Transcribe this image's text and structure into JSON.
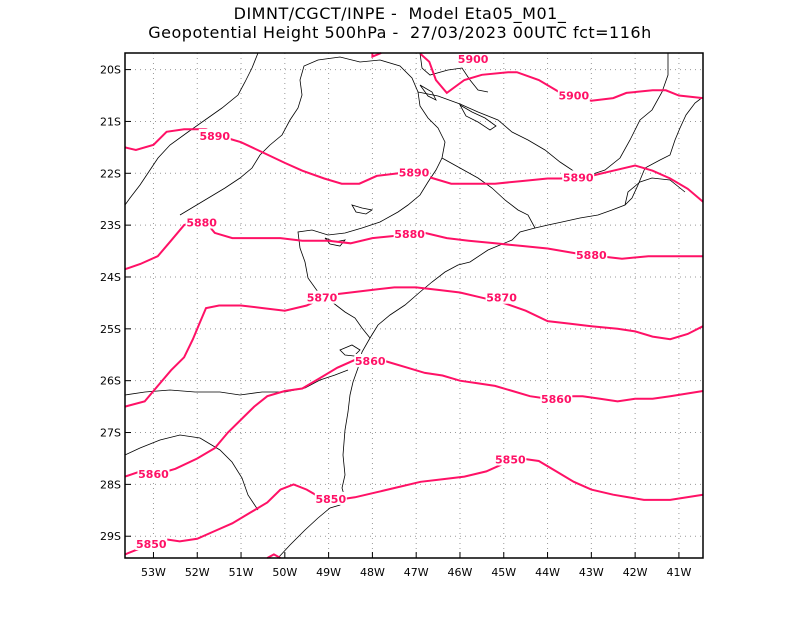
{
  "header": {
    "title_line1": "DIMNT/CGCT/INPE -  Model Eta05_M01_",
    "title_line2": "Geopotential Height 500hPa -  27/03/2023 00UTC fct=116h"
  },
  "map": {
    "lon_range": [
      -53.65,
      -40.45
    ],
    "lat_range": [
      -29.42,
      -19.68
    ],
    "lon_ticks": [
      {
        "value": -53,
        "label": "53W"
      },
      {
        "value": -52,
        "label": "52W"
      },
      {
        "value": -51,
        "label": "51W"
      },
      {
        "value": -50,
        "label": "50W"
      },
      {
        "value": -49,
        "label": "49W"
      },
      {
        "value": -48,
        "label": "48W"
      },
      {
        "value": -47,
        "label": "47W"
      },
      {
        "value": -46,
        "label": "46W"
      },
      {
        "value": -45,
        "label": "45W"
      },
      {
        "value": -44,
        "label": "44W"
      },
      {
        "value": -43,
        "label": "43W"
      },
      {
        "value": -42,
        "label": "42W"
      },
      {
        "value": -41,
        "label": "41W"
      }
    ],
    "lat_ticks": [
      {
        "value": -20,
        "label": "20S"
      },
      {
        "value": -21,
        "label": "21S"
      },
      {
        "value": -22,
        "label": "22S"
      },
      {
        "value": -23,
        "label": "23S"
      },
      {
        "value": -24,
        "label": "24S"
      },
      {
        "value": -25,
        "label": "25S"
      },
      {
        "value": -26,
        "label": "26S"
      },
      {
        "value": -27,
        "label": "27S"
      },
      {
        "value": -28,
        "label": "28S"
      },
      {
        "value": -29,
        "label": "29S"
      }
    ],
    "grid": "dotted",
    "contour_color": "#ff1166",
    "contours": [
      {
        "level": "5900",
        "points": [
          [
            -46.9,
            -19.7
          ],
          [
            -46.7,
            -19.85
          ],
          [
            -46.55,
            -20.2
          ],
          [
            -46.3,
            -20.45
          ],
          [
            -45.9,
            -20.2
          ],
          [
            -45.5,
            -20.1
          ],
          [
            -44.9,
            -20.05
          ],
          [
            -44.7,
            -20.05
          ],
          [
            -44.2,
            -20.2
          ],
          [
            -43.6,
            -20.5
          ],
          [
            -43.0,
            -20.6
          ],
          [
            -42.5,
            -20.55
          ],
          [
            -42.2,
            -20.45
          ],
          [
            -41.6,
            -20.4
          ],
          [
            -41.3,
            -20.4
          ],
          [
            -41.0,
            -20.5
          ],
          [
            -40.45,
            -20.55
          ]
        ],
        "labels": [
          {
            "text": "5900",
            "lon": -45.7,
            "lat": -19.8
          },
          {
            "text": "5900",
            "lon": -43.4,
            "lat": -20.5
          }
        ]
      },
      {
        "level": "5900",
        "points": [
          [
            -48.0,
            -19.68
          ],
          [
            -48.0,
            -19.75
          ],
          [
            -47.8,
            -19.68
          ]
        ],
        "labels": []
      },
      {
        "level": "5890",
        "points": [
          [
            -53.65,
            -21.5
          ],
          [
            -53.4,
            -21.55
          ],
          [
            -53.0,
            -21.45
          ],
          [
            -52.7,
            -21.2
          ],
          [
            -52.3,
            -21.15
          ],
          [
            -51.8,
            -21.15
          ],
          [
            -51.4,
            -21.3
          ],
          [
            -51.0,
            -21.4
          ],
          [
            -50.5,
            -21.6
          ],
          [
            -50.0,
            -21.8
          ],
          [
            -49.6,
            -21.95
          ],
          [
            -49.1,
            -22.1
          ],
          [
            -48.7,
            -22.2
          ],
          [
            -48.3,
            -22.2
          ],
          [
            -47.9,
            -22.05
          ],
          [
            -47.4,
            -22.0
          ],
          [
            -47.0,
            -22.0
          ],
          [
            -46.6,
            -22.1
          ],
          [
            -46.2,
            -22.2
          ],
          [
            -45.8,
            -22.2
          ],
          [
            -45.2,
            -22.2
          ],
          [
            -44.6,
            -22.15
          ],
          [
            -44.0,
            -22.1
          ],
          [
            -43.5,
            -22.1
          ],
          [
            -43.0,
            -22.05
          ],
          [
            -42.5,
            -21.95
          ],
          [
            -42.0,
            -21.85
          ],
          [
            -41.6,
            -21.95
          ],
          [
            -41.2,
            -22.1
          ],
          [
            -40.8,
            -22.3
          ],
          [
            -40.45,
            -22.55
          ]
        ],
        "labels": [
          {
            "text": "5890",
            "lon": -51.6,
            "lat": -21.28
          },
          {
            "text": "5890",
            "lon": -47.05,
            "lat": -21.98
          },
          {
            "text": "5890",
            "lon": -43.3,
            "lat": -22.08
          }
        ]
      },
      {
        "level": "5880",
        "points": [
          [
            -53.65,
            -23.85
          ],
          [
            -53.3,
            -23.75
          ],
          [
            -52.9,
            -23.6
          ],
          [
            -52.6,
            -23.3
          ],
          [
            -52.3,
            -23.0
          ],
          [
            -52.0,
            -22.9
          ],
          [
            -51.8,
            -22.95
          ],
          [
            -51.6,
            -23.15
          ],
          [
            -51.2,
            -23.25
          ],
          [
            -50.7,
            -23.25
          ],
          [
            -50.1,
            -23.25
          ],
          [
            -49.6,
            -23.3
          ],
          [
            -49.0,
            -23.3
          ],
          [
            -48.5,
            -23.35
          ],
          [
            -48.0,
            -23.25
          ],
          [
            -47.4,
            -23.2
          ],
          [
            -46.8,
            -23.15
          ],
          [
            -46.3,
            -23.25
          ],
          [
            -45.8,
            -23.3
          ],
          [
            -45.2,
            -23.35
          ],
          [
            -44.6,
            -23.4
          ],
          [
            -44.0,
            -23.45
          ],
          [
            -43.3,
            -23.55
          ],
          [
            -42.8,
            -23.6
          ],
          [
            -42.3,
            -23.65
          ],
          [
            -41.7,
            -23.6
          ],
          [
            -41.2,
            -23.6
          ],
          [
            -40.8,
            -23.6
          ],
          [
            -40.45,
            -23.6
          ]
        ],
        "labels": [
          {
            "text": "5880",
            "lon": -51.9,
            "lat": -22.95
          },
          {
            "text": "5880",
            "lon": -47.15,
            "lat": -23.17
          },
          {
            "text": "5880",
            "lon": -43.0,
            "lat": -23.58
          }
        ]
      },
      {
        "level": "5870",
        "points": [
          [
            -53.65,
            -26.5
          ],
          [
            -53.2,
            -26.4
          ],
          [
            -52.9,
            -26.1
          ],
          [
            -52.6,
            -25.8
          ],
          [
            -52.3,
            -25.55
          ],
          [
            -52.1,
            -25.2
          ],
          [
            -51.95,
            -24.9
          ],
          [
            -51.8,
            -24.6
          ],
          [
            -51.5,
            -24.55
          ],
          [
            -51.0,
            -24.55
          ],
          [
            -50.5,
            -24.6
          ],
          [
            -50.0,
            -24.65
          ],
          [
            -49.5,
            -24.55
          ],
          [
            -49.0,
            -24.35
          ],
          [
            -48.5,
            -24.3
          ],
          [
            -48.0,
            -24.25
          ],
          [
            -47.5,
            -24.2
          ],
          [
            -47.0,
            -24.2
          ],
          [
            -46.5,
            -24.25
          ],
          [
            -46.0,
            -24.3
          ],
          [
            -45.5,
            -24.4
          ],
          [
            -45.0,
            -24.5
          ],
          [
            -44.5,
            -24.65
          ],
          [
            -44.0,
            -24.85
          ],
          [
            -43.5,
            -24.9
          ],
          [
            -43.0,
            -24.95
          ],
          [
            -42.4,
            -25.0
          ],
          [
            -42.0,
            -25.05
          ],
          [
            -41.6,
            -25.15
          ],
          [
            -41.2,
            -25.2
          ],
          [
            -40.8,
            -25.1
          ],
          [
            -40.45,
            -24.95
          ]
        ],
        "labels": [
          {
            "text": "5870",
            "lon": -49.15,
            "lat": -24.4
          },
          {
            "text": "5870",
            "lon": -45.05,
            "lat": -24.4
          }
        ]
      },
      {
        "level": "5860",
        "points": [
          [
            -53.65,
            -27.85
          ],
          [
            -53.3,
            -27.75
          ],
          [
            -52.9,
            -27.8
          ],
          [
            -52.5,
            -27.7
          ],
          [
            -52.0,
            -27.5
          ],
          [
            -51.6,
            -27.3
          ],
          [
            -51.3,
            -27.0
          ],
          [
            -51.0,
            -26.75
          ],
          [
            -50.7,
            -26.5
          ],
          [
            -50.4,
            -26.3
          ],
          [
            -50.0,
            -26.2
          ],
          [
            -49.6,
            -26.15
          ],
          [
            -49.2,
            -25.95
          ],
          [
            -48.8,
            -25.75
          ],
          [
            -48.4,
            -25.6
          ],
          [
            -48.0,
            -25.55
          ],
          [
            -47.6,
            -25.65
          ],
          [
            -47.2,
            -25.75
          ],
          [
            -46.8,
            -25.85
          ],
          [
            -46.4,
            -25.9
          ],
          [
            -46.0,
            -26.0
          ],
          [
            -45.6,
            -26.05
          ],
          [
            -45.2,
            -26.1
          ],
          [
            -44.8,
            -26.2
          ],
          [
            -44.4,
            -26.3
          ],
          [
            -44.0,
            -26.35
          ],
          [
            -43.6,
            -26.3
          ],
          [
            -43.2,
            -26.3
          ],
          [
            -42.8,
            -26.35
          ],
          [
            -42.4,
            -26.4
          ],
          [
            -42.0,
            -26.35
          ],
          [
            -41.6,
            -26.35
          ],
          [
            -41.2,
            -26.3
          ],
          [
            -40.45,
            -26.2
          ]
        ],
        "labels": [
          {
            "text": "5860",
            "lon": -53.0,
            "lat": -27.8
          },
          {
            "text": "5860",
            "lon": -48.05,
            "lat": -25.62
          },
          {
            "text": "5860",
            "lon": -43.8,
            "lat": -26.35
          }
        ]
      },
      {
        "level": "5850",
        "points": [
          [
            -53.65,
            -29.35
          ],
          [
            -53.2,
            -29.2
          ],
          [
            -52.8,
            -29.05
          ],
          [
            -52.4,
            -29.1
          ],
          [
            -52.0,
            -29.05
          ],
          [
            -51.6,
            -28.9
          ],
          [
            -51.2,
            -28.75
          ],
          [
            -50.8,
            -28.55
          ],
          [
            -50.4,
            -28.35
          ],
          [
            -50.1,
            -28.1
          ],
          [
            -49.8,
            -28.0
          ],
          [
            -49.5,
            -28.1
          ],
          [
            -49.2,
            -28.25
          ],
          [
            -48.8,
            -28.3
          ],
          [
            -48.4,
            -28.25
          ],
          [
            -47.9,
            -28.15
          ],
          [
            -47.4,
            -28.05
          ],
          [
            -46.9,
            -27.95
          ],
          [
            -46.4,
            -27.9
          ],
          [
            -45.9,
            -27.85
          ],
          [
            -45.4,
            -27.75
          ],
          [
            -45.0,
            -27.6
          ],
          [
            -44.6,
            -27.5
          ],
          [
            -44.2,
            -27.55
          ],
          [
            -43.8,
            -27.75
          ],
          [
            -43.4,
            -27.95
          ],
          [
            -43.0,
            -28.1
          ],
          [
            -42.5,
            -28.2
          ],
          [
            -41.8,
            -28.3
          ],
          [
            -41.2,
            -28.3
          ],
          [
            -40.45,
            -28.2
          ]
        ],
        "labels": [
          {
            "text": "5850",
            "lon": -53.05,
            "lat": -29.15
          },
          {
            "text": "5850",
            "lon": -48.95,
            "lat": -28.28
          },
          {
            "text": "5850",
            "lon": -44.85,
            "lat": -27.52
          }
        ]
      },
      {
        "level": "5850",
        "points": [
          [
            -50.4,
            -29.42
          ],
          [
            -50.25,
            -29.35
          ],
          [
            -50.1,
            -29.42
          ]
        ],
        "labels": []
      }
    ]
  }
}
